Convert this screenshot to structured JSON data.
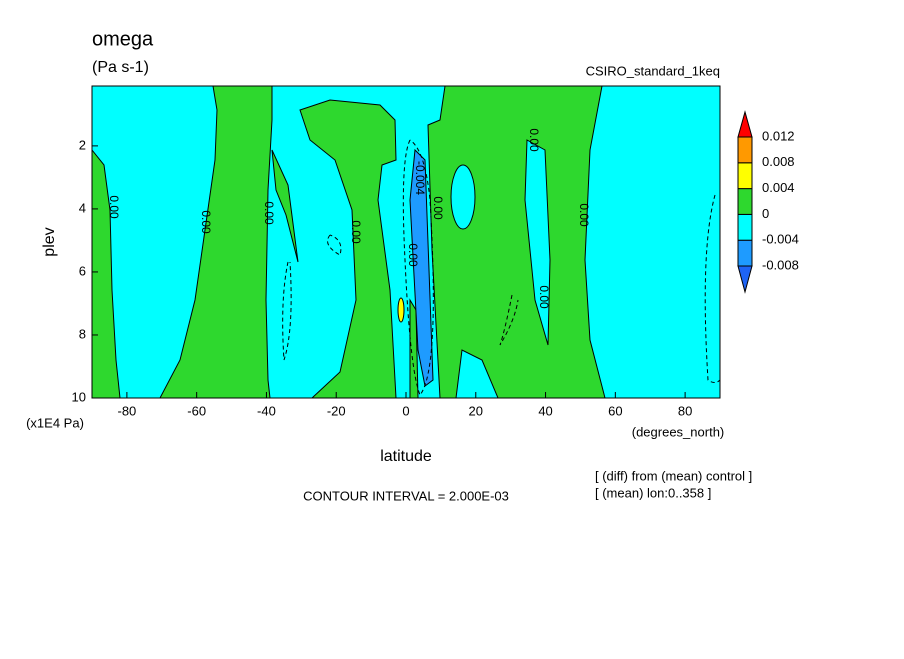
{
  "chart_data": {
    "type": "contour",
    "title": "omega",
    "subtitle": "(Pa s-1)",
    "dataset": "CSIRO_standard_1keq",
    "x_label": "latitude",
    "x_units": "(degrees_north)",
    "y_label": "plev",
    "y_units": "(x1E4 Pa)",
    "xlim": [
      -90,
      90
    ],
    "xticks": [
      -80,
      -60,
      -40,
      -20,
      0,
      20,
      40,
      60,
      80
    ],
    "ylim": [
      10,
      0.1
    ],
    "yticks": [
      2,
      4,
      6,
      8,
      10
    ],
    "contour_interval": "CONTOUR INTERVAL = 2.000E-03",
    "notes": [
      "[ (diff) from (mean) control ]",
      "[ (mean) lon:0..358 ]"
    ],
    "contour_labels": [
      {
        "value": 0,
        "label": "0.00"
      },
      {
        "value": 0,
        "label": "0.00"
      },
      {
        "value": 0,
        "label": "0.00"
      },
      {
        "value": 0,
        "label": "0.00"
      },
      {
        "value": 0,
        "label": "0.00"
      },
      {
        "value": -0.004,
        "label": "-0.004"
      },
      {
        "value": 0,
        "label": "0.00"
      },
      {
        "value": 0,
        "label": "0.00"
      },
      {
        "value": 0,
        "label": "0.00"
      },
      {
        "value": 0,
        "label": "0.00"
      }
    ],
    "colorbar": {
      "ticks": [
        -0.008,
        -0.004,
        0,
        0.004,
        0.008,
        0.012
      ],
      "colors": [
        "#1e64f5",
        "#1e9bff",
        "#00ffff",
        "#2ed82e",
        "#ffff00",
        "#ff9900",
        "#ff0000"
      ]
    }
  }
}
